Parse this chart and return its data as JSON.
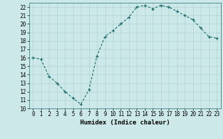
{
  "x": [
    0,
    1,
    2,
    3,
    4,
    5,
    6,
    7,
    8,
    9,
    10,
    11,
    12,
    13,
    14,
    15,
    16,
    17,
    18,
    19,
    20,
    21,
    22,
    23
  ],
  "y": [
    16.0,
    15.8,
    13.8,
    13.0,
    12.0,
    11.2,
    10.5,
    12.2,
    16.2,
    18.5,
    19.2,
    20.0,
    20.8,
    22.0,
    22.2,
    21.8,
    22.2,
    22.0,
    21.5,
    21.0,
    20.5,
    19.5,
    18.5,
    18.3
  ],
  "xlabel": "Humidex (Indice chaleur)",
  "ylim": [
    10,
    22.5
  ],
  "xlim": [
    -0.5,
    23.5
  ],
  "bg_color": "#cce8e8",
  "line_color": "#1a6b6b",
  "grid_color": "#aacccc",
  "tick_label_size": 5.5,
  "xlabel_size": 6.5,
  "yticks": [
    10,
    11,
    12,
    13,
    14,
    15,
    16,
    17,
    18,
    19,
    20,
    21,
    22
  ],
  "xticks": [
    0,
    1,
    2,
    3,
    4,
    5,
    6,
    7,
    8,
    9,
    10,
    11,
    12,
    13,
    14,
    15,
    16,
    17,
    18,
    19,
    20,
    21,
    22,
    23
  ]
}
